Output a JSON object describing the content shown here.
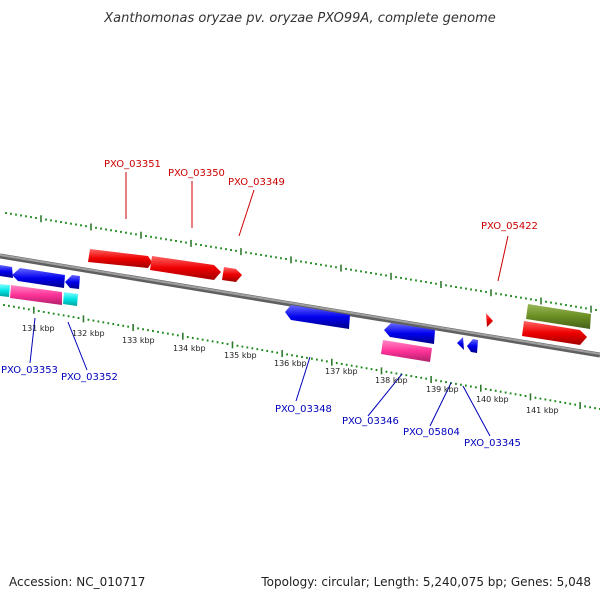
{
  "title": "Xanthomonas oryzae pv. oryzae PXO99A, complete genome",
  "footer": {
    "accession": "Accession: NC_010717",
    "summary": "Topology: circular; Length: 5,240,075 bp; Genes: 5,048"
  },
  "colors": {
    "backbone": "#808080",
    "forward_label": "#cc0000",
    "reverse_label": "#0000bb",
    "ruler_major": "#2f7a2f",
    "ruler_minor": "#1a8a1a"
  },
  "ruler_labels": [
    "131 kbp",
    "132 kbp",
    "133 kbp",
    "134 kbp",
    "135 kbp",
    "136 kbp",
    "137 kbp",
    "138 kbp",
    "139 kbp",
    "140 kbp",
    "141 kbp"
  ],
  "forward_gene_labels": [
    "PXO_03351",
    "PXO_03350",
    "PXO_03349",
    "PXO_05422"
  ],
  "reverse_gene_labels": [
    "PXO_03353",
    "PXO_03352",
    "PXO_03348",
    "PXO_03346",
    "PXO_05804",
    "PXO_03345"
  ],
  "feature_colors": [
    "#ff0000",
    "#0000ff",
    "#ff3399",
    "#00e5e5",
    "#6b8e23"
  ]
}
